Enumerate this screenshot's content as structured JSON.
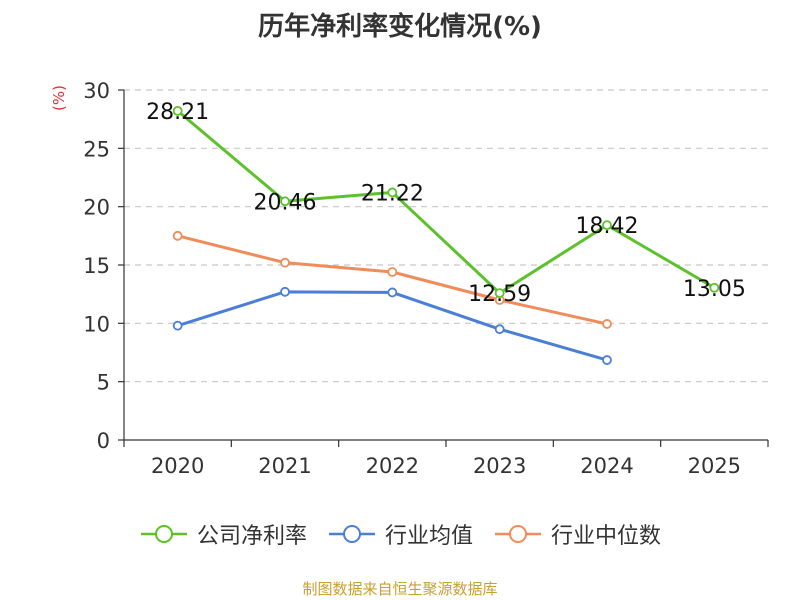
{
  "title": "历年净利率变化情况(%)",
  "unit_label": "(%)",
  "source": "制图数据来自恒生聚源数据库",
  "colors": {
    "company": "#5cc12a",
    "industry_avg": "#4a7fd8",
    "industry_median": "#f08c5a",
    "grid": "#c8c8c8",
    "axis": "#333333"
  },
  "chart_data": {
    "type": "line",
    "categories": [
      "2020",
      "2021",
      "2022",
      "2023",
      "2024",
      "2025"
    ],
    "ylim": [
      0,
      30
    ],
    "yticks": [
      "0",
      "5",
      "10",
      "15",
      "20",
      "25",
      "30"
    ],
    "grid": true,
    "legend_position": "bottom",
    "series": [
      {
        "name": "公司净利率",
        "key": "company",
        "values": [
          28.21,
          20.46,
          21.22,
          12.59,
          18.42,
          13.05
        ],
        "labels": [
          "28.21",
          "20.46",
          "21.22",
          "12.59",
          "18.42",
          "13.05"
        ]
      },
      {
        "name": "行业均值",
        "key": "industry_avg",
        "values": [
          9.8,
          12.7,
          12.65,
          9.5,
          6.85,
          null
        ]
      },
      {
        "name": "行业中位数",
        "key": "industry_median",
        "values": [
          17.5,
          15.2,
          14.4,
          12.0,
          9.95,
          null
        ]
      }
    ]
  }
}
